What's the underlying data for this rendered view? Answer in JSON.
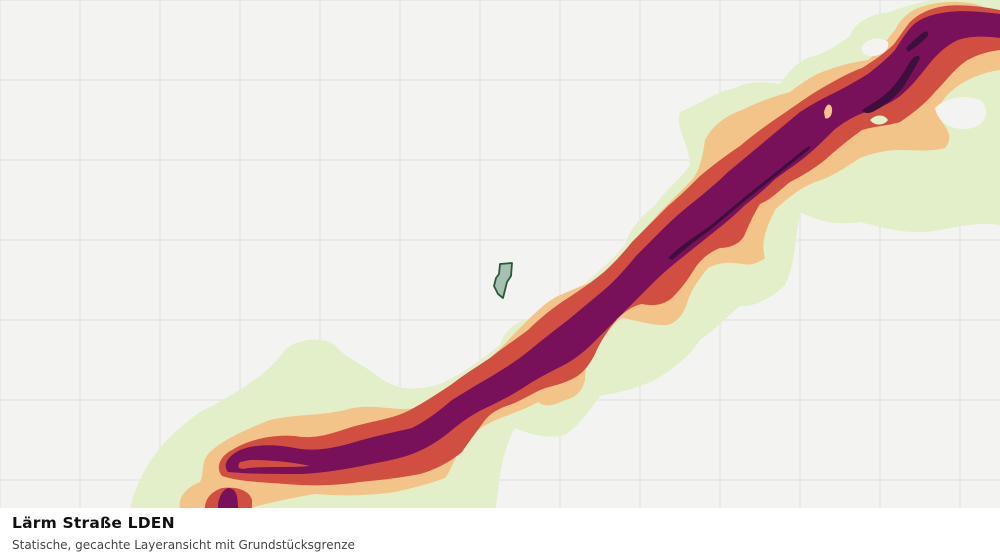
{
  "layer": {
    "title": "Lärm Straße LDEN",
    "subtitle": "Statische, gecachte Layeransicht mit Grundstücksgrenze"
  },
  "colors": {
    "background": "#f3f4f2",
    "grid": "#dfe1df",
    "zone_1": "#e3efc8",
    "zone_2": "#f3c489",
    "zone_3": "#d14f40",
    "zone_4": "#78115a",
    "zone_5": "#3c0f3c",
    "parcel_fill": "#a7c1b0",
    "parcel_stroke": "#2a5a34"
  }
}
